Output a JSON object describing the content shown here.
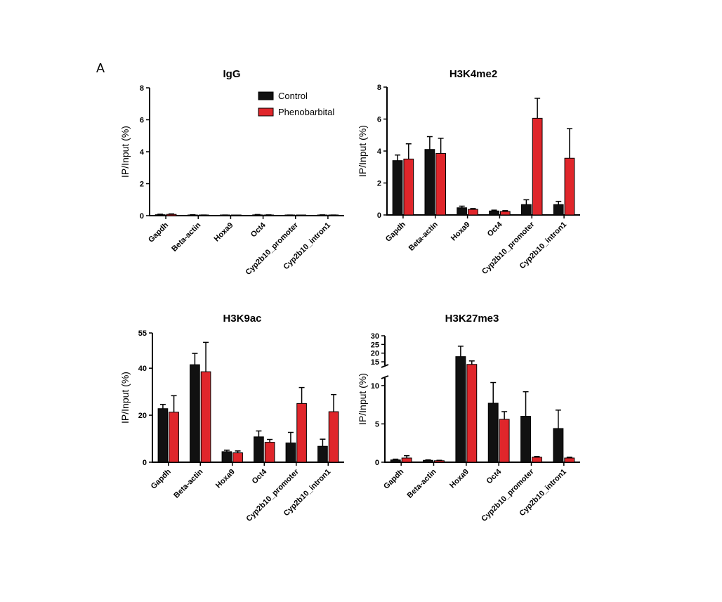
{
  "figure": {
    "panel_label": "A"
  },
  "legend": {
    "entries": [
      {
        "label": "Control",
        "color": "#111111"
      },
      {
        "label": "Phenobarbital",
        "color": "#e0262b"
      }
    ]
  },
  "chart_data": [
    {
      "type": "bar",
      "title": "IgG",
      "xlabel": "",
      "ylabel": "IP/Input (%)",
      "ylim": [
        0,
        8
      ],
      "yticks": [
        0,
        2,
        4,
        6,
        8
      ],
      "categories": [
        "Gapdh",
        "Beta-actin",
        "Hoxa9",
        "Oct4",
        "Cyp2b10_promoter",
        "Cyp2b10_intron1"
      ],
      "series": [
        {
          "name": "Control",
          "values": [
            0.06,
            0.04,
            0.03,
            0.05,
            0.03,
            0.04
          ],
          "errors": [
            0.03,
            0.02,
            0.01,
            0.02,
            0.01,
            0.01
          ]
        },
        {
          "name": "Phenobarbital",
          "values": [
            0.08,
            0.03,
            0.02,
            0.04,
            0.02,
            0.03
          ],
          "errors": [
            0.03,
            0.01,
            0.01,
            0.01,
            0.01,
            0.01
          ]
        }
      ]
    },
    {
      "type": "bar",
      "title": "H3K4me2",
      "xlabel": "",
      "ylabel": "IP/Input (%)",
      "ylim": [
        0,
        8
      ],
      "yticks": [
        0,
        2,
        4,
        6,
        8
      ],
      "categories": [
        "Gapdh",
        "Beta-actin",
        "Hoxa9",
        "Oct4",
        "Cyp2b10_promoter",
        "Cyp2b10_intron1"
      ],
      "series": [
        {
          "name": "Control",
          "values": [
            3.4,
            4.1,
            0.45,
            0.25,
            0.65,
            0.65
          ],
          "errors": [
            0.35,
            0.8,
            0.1,
            0.05,
            0.3,
            0.2
          ]
        },
        {
          "name": "Phenobarbital",
          "values": [
            3.5,
            3.85,
            0.35,
            0.22,
            6.05,
            3.55
          ],
          "errors": [
            0.95,
            0.95,
            0.05,
            0.05,
            1.25,
            1.85
          ]
        }
      ]
    },
    {
      "type": "bar",
      "title": "H3K9ac",
      "xlabel": "",
      "ylabel": "IP/Input (%)",
      "ylim": [
        0,
        55
      ],
      "yticks": [
        0,
        20,
        40,
        55
      ],
      "categories": [
        "Gapdh",
        "Beta-actin",
        "Hoxa9",
        "Oct4",
        "Cyp2b10_promoter",
        "Cyp2b10_intron1"
      ],
      "series": [
        {
          "name": "Control",
          "values": [
            22.8,
            41.5,
            4.5,
            10.8,
            8.2,
            6.8
          ],
          "errors": [
            1.8,
            4.8,
            0.6,
            2.5,
            4.5,
            3.0
          ]
        },
        {
          "name": "Phenobarbital",
          "values": [
            21.3,
            38.5,
            4.0,
            8.5,
            25.0,
            21.5
          ],
          "errors": [
            7.0,
            12.5,
            0.8,
            1.2,
            6.8,
            7.3
          ]
        }
      ]
    },
    {
      "type": "bar",
      "title": "H3K27me3",
      "xlabel": "",
      "ylabel": "IP/Input (%)",
      "ylim": [
        0,
        30
      ],
      "y_axis_break": [
        11,
        13
      ],
      "yticks": [
        0,
        5,
        10,
        15,
        20,
        25,
        30
      ],
      "categories": [
        "Gapdh",
        "Beta-actin",
        "Hoxa9",
        "Oct4",
        "Cyp2b10_promoter",
        "Cyp2b10_intron1"
      ],
      "series": [
        {
          "name": "Control",
          "values": [
            0.3,
            0.25,
            18.0,
            7.7,
            6.0,
            4.4
          ],
          "errors": [
            0.1,
            0.05,
            6.0,
            2.7,
            3.2,
            2.4
          ]
        },
        {
          "name": "Phenobarbital",
          "values": [
            0.55,
            0.2,
            13.5,
            5.6,
            0.65,
            0.55
          ],
          "errors": [
            0.3,
            0.05,
            2.0,
            1.0,
            0.1,
            0.1
          ]
        }
      ]
    }
  ]
}
